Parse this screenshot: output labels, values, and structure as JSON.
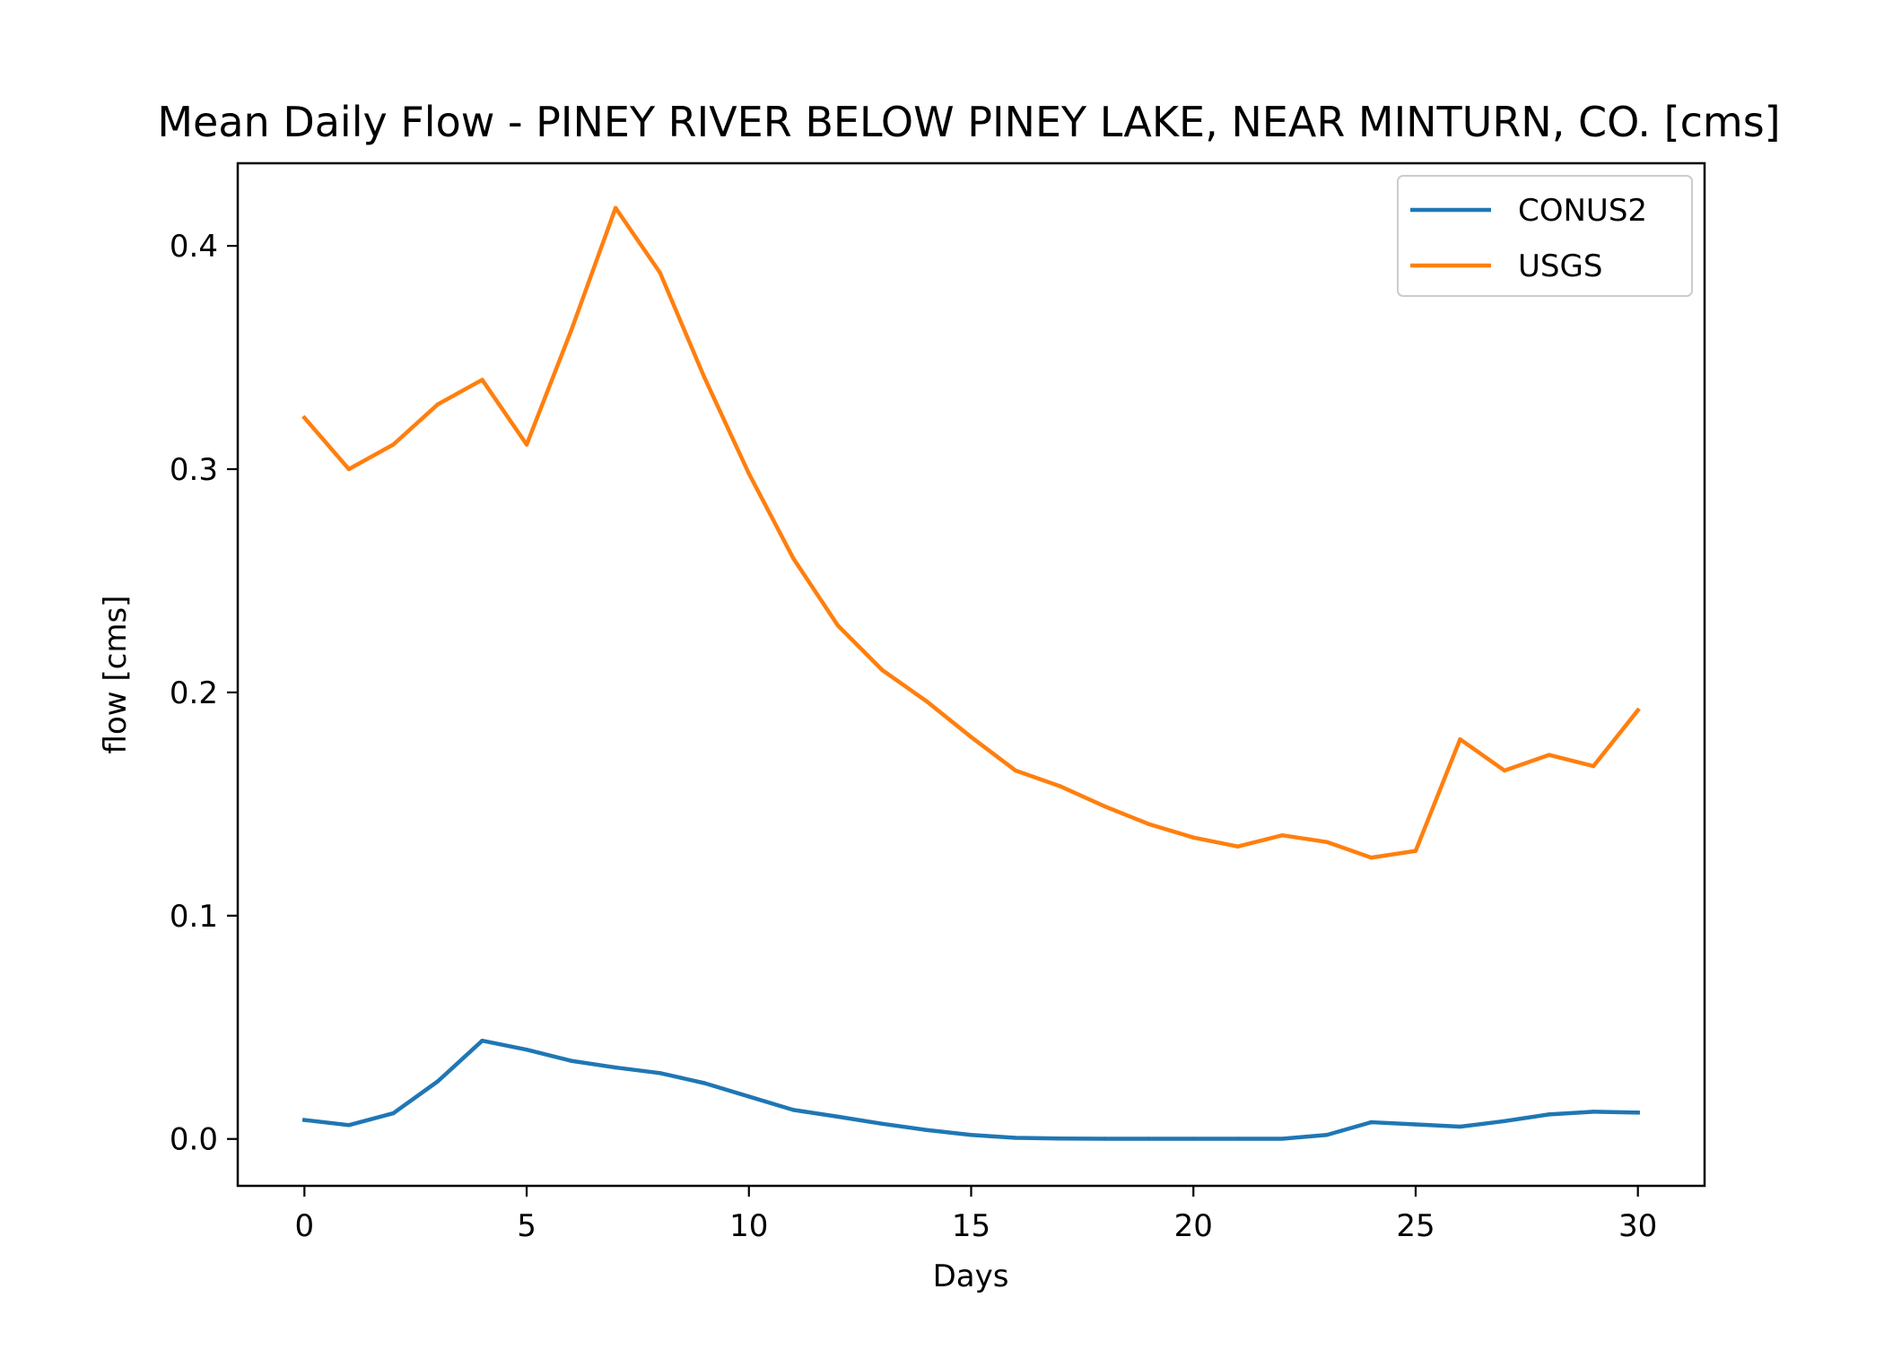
{
  "chart_data": {
    "type": "line",
    "title": "Mean Daily Flow - PINEY RIVER BELOW PINEY LAKE, NEAR MINTURN, CO. [cms]",
    "xlabel": "Days",
    "ylabel": "flow [cms]",
    "xlim": [
      -1.5,
      31.5
    ],
    "ylim": [
      -0.021,
      0.437
    ],
    "xticks": [
      0,
      5,
      10,
      15,
      20,
      25,
      30
    ],
    "xtick_labels": [
      "0",
      "5",
      "10",
      "15",
      "20",
      "25",
      "30"
    ],
    "yticks": [
      0.0,
      0.1,
      0.2,
      0.3,
      0.4
    ],
    "ytick_labels": [
      "0.0",
      "0.1",
      "0.2",
      "0.3",
      "0.4"
    ],
    "grid": false,
    "legend_position": "top-right",
    "x": [
      0,
      1,
      2,
      3,
      4,
      5,
      6,
      7,
      8,
      9,
      10,
      11,
      12,
      13,
      14,
      15,
      16,
      17,
      18,
      19,
      20,
      21,
      22,
      23,
      24,
      25,
      26,
      27,
      28,
      29,
      30
    ],
    "series": [
      {
        "name": "CONUS2",
        "color": "#1f77b4",
        "values": [
          0.0085,
          0.0062,
          0.0115,
          0.0258,
          0.044,
          0.04,
          0.035,
          0.032,
          0.0295,
          0.025,
          0.019,
          0.013,
          0.01,
          0.0068,
          0.004,
          0.0018,
          0.0005,
          0.0002,
          0.0001,
          0.0001,
          0.0001,
          0.0001,
          0.0001,
          0.0018,
          0.0075,
          0.0065,
          0.0055,
          0.008,
          0.011,
          0.0122,
          0.0118
        ]
      },
      {
        "name": "USGS",
        "color": "#ff7f0e",
        "values": [
          0.323,
          0.3,
          0.311,
          0.329,
          0.34,
          0.311,
          0.362,
          0.417,
          0.388,
          0.341,
          0.298,
          0.26,
          0.23,
          0.21,
          0.196,
          0.18,
          0.165,
          0.158,
          0.149,
          0.141,
          0.135,
          0.131,
          0.136,
          0.133,
          0.126,
          0.129,
          0.179,
          0.165,
          0.172,
          0.167,
          0.192
        ]
      }
    ]
  }
}
